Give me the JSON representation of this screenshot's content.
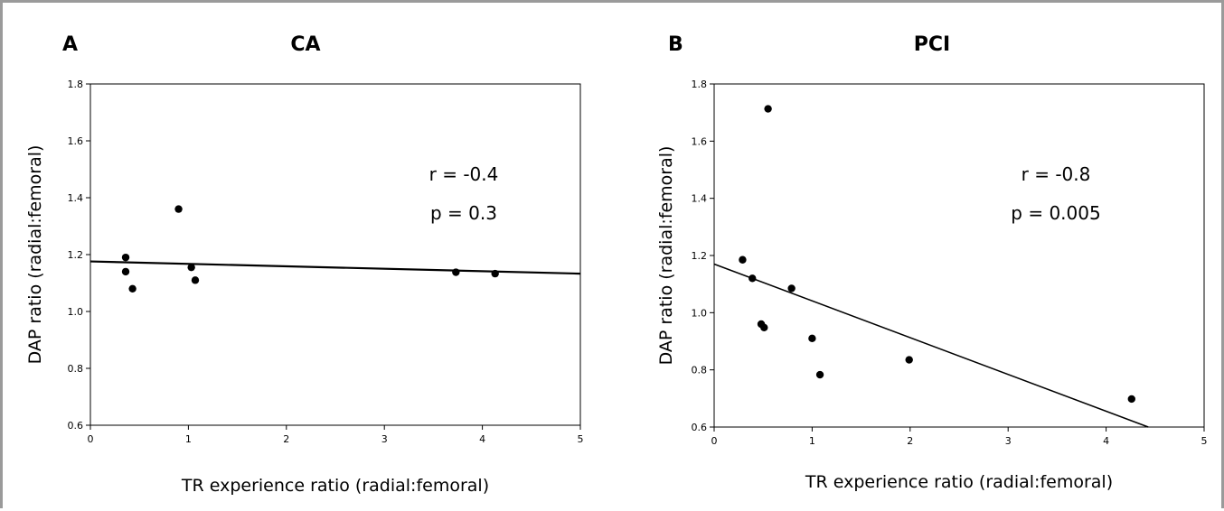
{
  "chart_data": [
    {
      "type": "scatter",
      "panel": "A",
      "title": "CA",
      "xlabel": "TR experience ratio (radial:femoral)",
      "ylabel": "DAP ratio (radial:femoral)",
      "xlim": [
        0,
        5
      ],
      "ylim": [
        0.6,
        1.8
      ],
      "xticks": [
        "0",
        "1",
        "2",
        "3",
        "4",
        "5"
      ],
      "yticks": [
        "0.6",
        "0.8",
        "1.0",
        "1.2",
        "1.4",
        "1.6",
        "1.8"
      ],
      "grid": false,
      "points": [
        {
          "x": 0.36,
          "y": 1.19
        },
        {
          "x": 0.36,
          "y": 1.14
        },
        {
          "x": 0.43,
          "y": 1.08
        },
        {
          "x": 0.9,
          "y": 1.36
        },
        {
          "x": 1.03,
          "y": 1.155
        },
        {
          "x": 1.07,
          "y": 1.11
        },
        {
          "x": 3.73,
          "y": 1.138
        },
        {
          "x": 4.13,
          "y": 1.133
        }
      ],
      "fit_line": {
        "x": [
          0,
          5
        ],
        "y": [
          1.176,
          1.133
        ]
      },
      "stats": {
        "r": "r = -0.4",
        "p": "p = 0.3"
      }
    },
    {
      "type": "scatter",
      "panel": "B",
      "title": "PCI",
      "xlabel": "TR experience ratio (radial:femoral)",
      "ylabel": "DAP ratio (radial:femoral)",
      "xlim": [
        0,
        5
      ],
      "ylim": [
        0.6,
        1.8
      ],
      "xticks": [
        "0",
        "1",
        "2",
        "3",
        "4",
        "5"
      ],
      "yticks": [
        "0.6",
        "0.8",
        "1.0",
        "1.2",
        "1.4",
        "1.6",
        "1.8"
      ],
      "grid": false,
      "points": [
        {
          "x": 0.29,
          "y": 1.185
        },
        {
          "x": 0.39,
          "y": 1.12
        },
        {
          "x": 0.48,
          "y": 0.96
        },
        {
          "x": 0.51,
          "y": 0.948
        },
        {
          "x": 0.55,
          "y": 1.713
        },
        {
          "x": 0.79,
          "y": 1.085
        },
        {
          "x": 1.0,
          "y": 0.91
        },
        {
          "x": 1.08,
          "y": 0.783
        },
        {
          "x": 1.99,
          "y": 0.835
        },
        {
          "x": 4.26,
          "y": 0.698
        }
      ],
      "fit_line": {
        "x": [
          0,
          4.43
        ],
        "y": [
          1.17,
          0.6
        ]
      },
      "stats": {
        "r": "r = -0.8",
        "p": "p = 0.005"
      }
    }
  ]
}
